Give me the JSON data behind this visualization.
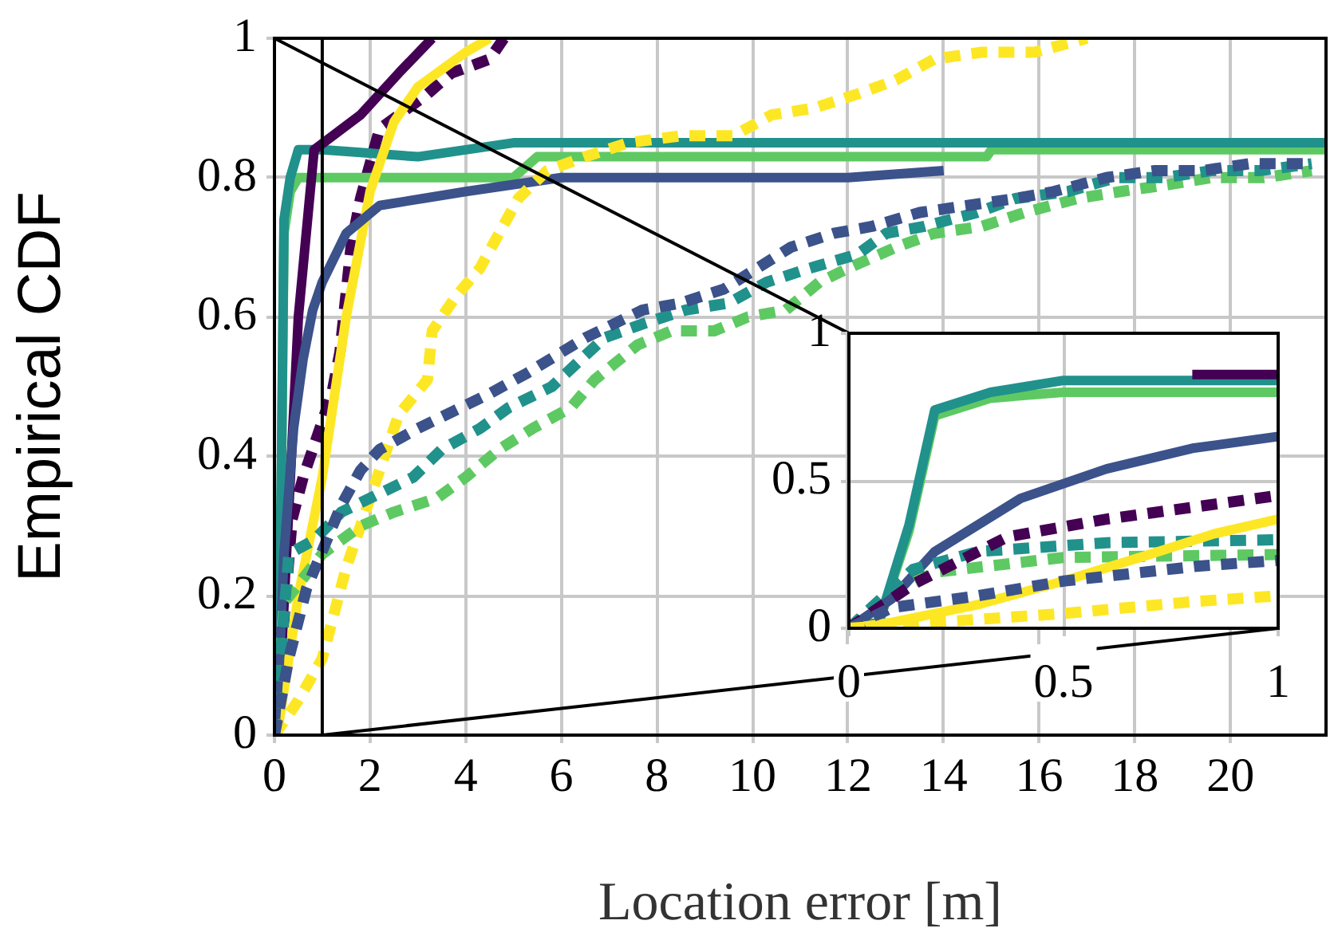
{
  "chart_data": [
    {
      "type": "line",
      "xlabel": "Location error [m]",
      "ylabel": "Empirical CDF",
      "xlim": [
        0,
        22
      ],
      "ylim": [
        0,
        1
      ],
      "xticks": [
        0,
        2,
        4,
        6,
        8,
        10,
        12,
        14,
        16,
        18,
        20
      ],
      "yticks": [
        0,
        0.2,
        0.4,
        0.6,
        0.8,
        1
      ],
      "grid": true,
      "marker": "none",
      "ref_lines": [
        {
          "axis": "x",
          "value": 1,
          "color": "#000000"
        }
      ],
      "series": [
        {
          "color": "#3b528b",
          "line_style": "dashed",
          "x": [
            0,
            0.3,
            0.67,
            1.4,
            1.8,
            2.2,
            3,
            3.9,
            4.5,
            5.3,
            6.5,
            7.7,
            8.5,
            9.4,
            10.1,
            10.8,
            11.7,
            12.5,
            13.5,
            14.5,
            15.5,
            16.3,
            17.4,
            18.4,
            19.4,
            20.4,
            21.7
          ],
          "values": [
            0,
            0.11,
            0.21,
            0.33,
            0.38,
            0.41,
            0.44,
            0.47,
            0.49,
            0.52,
            0.57,
            0.61,
            0.62,
            0.64,
            0.67,
            0.7,
            0.72,
            0.73,
            0.75,
            0.76,
            0.77,
            0.78,
            0.8,
            0.81,
            0.81,
            0.82,
            0.82
          ]
        },
        {
          "color": "#21918c",
          "line_style": "dashed",
          "x": [
            0,
            0.3,
            0.83,
            1.4,
            2.9,
            3.5,
            4.3,
            4.9,
            5.8,
            6.9,
            7.7,
            8.6,
            9.5,
            10.3,
            11.2,
            12.2,
            12.8,
            13.6,
            14.7,
            15.5,
            16.6,
            17.6,
            18.6,
            19.6,
            20.6,
            21.7
          ],
          "values": [
            0,
            0.26,
            0.28,
            0.32,
            0.37,
            0.41,
            0.44,
            0.47,
            0.5,
            0.57,
            0.59,
            0.61,
            0.62,
            0.65,
            0.67,
            0.69,
            0.72,
            0.73,
            0.75,
            0.77,
            0.78,
            0.8,
            0.8,
            0.81,
            0.81,
            0.82
          ]
        },
        {
          "color": "#5ec962",
          "line_style": "dashed",
          "x": [
            0,
            0.2,
            1,
            1.8,
            2.5,
            3.4,
            4,
            4.7,
            5.4,
            6.2,
            6.7,
            7.6,
            8.3,
            9.2,
            9.9,
            10.7,
            11.4,
            12,
            13,
            13.8,
            14.8,
            15.7,
            16.8,
            17.7,
            18.7,
            19.6,
            20.7,
            21.7
          ],
          "values": [
            0,
            0.19,
            0.26,
            0.3,
            0.32,
            0.34,
            0.37,
            0.41,
            0.44,
            0.47,
            0.51,
            0.56,
            0.58,
            0.58,
            0.6,
            0.61,
            0.65,
            0.67,
            0.7,
            0.72,
            0.73,
            0.75,
            0.77,
            0.78,
            0.79,
            0.8,
            0.8,
            0.81
          ]
        },
        {
          "color": "#fde725",
          "line_style": "dashed",
          "x": [
            0,
            0.5,
            1,
            1.5,
            2.6,
            3.2,
            3.3,
            3.8,
            4.3,
            4.7,
            5.1,
            5.7,
            6.5,
            7.4,
            8.5,
            9.6,
            10.4,
            11.3,
            12.2,
            13,
            13.8,
            14.8,
            15.9,
            17
          ],
          "values": [
            0,
            0.05,
            0.11,
            0.24,
            0.46,
            0.51,
            0.58,
            0.63,
            0.67,
            0.72,
            0.77,
            0.81,
            0.83,
            0.85,
            0.86,
            0.86,
            0.89,
            0.9,
            0.92,
            0.94,
            0.97,
            0.98,
            0.98,
            1
          ]
        },
        {
          "color": "#3b528b",
          "line_style": "solid",
          "x": [
            0,
            0.1,
            0.2,
            0.4,
            0.6,
            0.8,
            1,
            1.5,
            2.2,
            4,
            6,
            12,
            14
          ],
          "values": [
            0,
            0.1,
            0.26,
            0.44,
            0.54,
            0.61,
            0.65,
            0.72,
            0.76,
            0.78,
            0.8,
            0.8,
            0.81
          ]
        },
        {
          "color": "#fde725",
          "line_style": "solid",
          "x": [
            0,
            0.1,
            0.5,
            1,
            1.5,
            2,
            2.5,
            3,
            4,
            4.5
          ],
          "values": [
            0,
            0.02,
            0.2,
            0.37,
            0.6,
            0.78,
            0.88,
            0.93,
            0.98,
            1
          ]
        },
        {
          "color": "#440154",
          "line_style": "solid",
          "x": [
            0,
            0.1,
            0.5,
            0.83,
            1.8,
            2.6,
            3.3
          ],
          "values": [
            0,
            0.05,
            0.6,
            0.84,
            0.89,
            0.95,
            1
          ]
        },
        {
          "color": "#21918c",
          "line_style": "solid",
          "x": [
            0,
            0.07,
            0.14,
            0.2,
            0.33,
            0.5,
            1,
            3,
            5,
            22
          ],
          "values": [
            0,
            0.02,
            0.35,
            0.74,
            0.8,
            0.84,
            0.84,
            0.83,
            0.85,
            0.85
          ]
        },
        {
          "color": "#5ec962",
          "line_style": "solid",
          "x": [
            0,
            0.07,
            0.14,
            0.2,
            0.33,
            0.5,
            1,
            5,
            5.5,
            14.9,
            15,
            22
          ],
          "values": [
            0,
            0.02,
            0.33,
            0.72,
            0.78,
            0.8,
            0.8,
            0.8,
            0.83,
            0.83,
            0.84,
            0.84
          ]
        },
        {
          "color": "#440154",
          "line_style": "dashed",
          "x": [
            0,
            0.37,
            0.6,
            1,
            1.2,
            1.37,
            1.6,
            1.8,
            2.2,
            3.2,
            3.7,
            4.5,
            4.8
          ],
          "values": [
            0,
            0.31,
            0.37,
            0.45,
            0.49,
            0.55,
            0.7,
            0.77,
            0.87,
            0.92,
            0.95,
            0.97,
            1
          ]
        }
      ]
    },
    {
      "type": "line",
      "xlim": [
        0,
        1
      ],
      "ylim": [
        0,
        1
      ],
      "xticks": [
        0,
        0.5,
        1
      ],
      "yticks": [
        0,
        0.5,
        1
      ],
      "grid": true,
      "marker": "none",
      "series": [
        {
          "color": "#fde725",
          "line_style": "dashed",
          "x": [
            0,
            0.2,
            0.5,
            0.8,
            1
          ],
          "values": [
            0,
            0.02,
            0.05,
            0.09,
            0.11
          ]
        },
        {
          "color": "#3b528b",
          "line_style": "dashed",
          "x": [
            0,
            0.1,
            0.3,
            0.5,
            0.81,
            1
          ],
          "values": [
            0,
            0.07,
            0.11,
            0.16,
            0.21,
            0.23
          ]
        },
        {
          "color": "#fde725",
          "line_style": "solid",
          "x": [
            0,
            0.1,
            0.3,
            0.5,
            0.7,
            0.85,
            1
          ],
          "values": [
            0,
            0.02,
            0.08,
            0.16,
            0.25,
            0.32,
            0.37
          ]
        },
        {
          "color": "#440154",
          "line_style": "dashed",
          "x": [
            0,
            0.15,
            0.37,
            0.6,
            1
          ],
          "values": [
            0,
            0.15,
            0.31,
            0.37,
            0.45
          ]
        },
        {
          "color": "#21918c",
          "line_style": "dashed",
          "x": [
            0,
            0.15,
            0.3,
            0.6,
            1
          ],
          "values": [
            0,
            0.2,
            0.26,
            0.29,
            0.3
          ]
        },
        {
          "color": "#5ec962",
          "line_style": "dashed",
          "x": [
            0,
            0.1,
            0.2,
            0.5,
            1
          ],
          "values": [
            0,
            0.12,
            0.19,
            0.24,
            0.25
          ]
        },
        {
          "color": "#3b528b",
          "line_style": "solid",
          "x": [
            0,
            0.1,
            0.2,
            0.4,
            0.6,
            0.8,
            1
          ],
          "values": [
            0,
            0.1,
            0.26,
            0.44,
            0.54,
            0.61,
            0.65
          ]
        },
        {
          "color": "#440154",
          "line_style": "solid",
          "x": [
            0.8,
            1
          ],
          "values": [
            0.86,
            0.86
          ]
        },
        {
          "color": "#21918c",
          "line_style": "solid",
          "x": [
            0,
            0.07,
            0.14,
            0.2,
            0.33,
            0.5,
            1
          ],
          "values": [
            0,
            0.02,
            0.35,
            0.74,
            0.8,
            0.84,
            0.84
          ]
        },
        {
          "color": "#5ec962",
          "line_style": "solid",
          "x": [
            0,
            0.07,
            0.14,
            0.2,
            0.33,
            0.5,
            1
          ],
          "values": [
            0,
            0.02,
            0.33,
            0.72,
            0.78,
            0.8,
            0.8
          ]
        }
      ]
    }
  ]
}
